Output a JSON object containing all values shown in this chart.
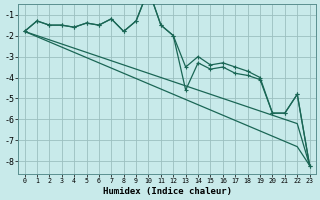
{
  "xlabel": "Humidex (Indice chaleur)",
  "background_color": "#c8eaea",
  "grid_color": "#9bbfbf",
  "line_color": "#1a6655",
  "xlim": [
    -0.5,
    23.5
  ],
  "ylim": [
    -8.6,
    -0.5
  ],
  "yticks": [
    -8,
    -7,
    -6,
    -5,
    -4,
    -3,
    -2,
    -1
  ],
  "xticks": [
    0,
    1,
    2,
    3,
    4,
    5,
    6,
    7,
    8,
    9,
    10,
    11,
    12,
    13,
    14,
    15,
    16,
    17,
    18,
    19,
    20,
    21,
    22,
    23
  ],
  "x": [
    0,
    1,
    2,
    3,
    4,
    5,
    6,
    7,
    8,
    9,
    10,
    11,
    12,
    13,
    14,
    15,
    16,
    17,
    18,
    19,
    20,
    21,
    22,
    23
  ],
  "line1": [
    -1.8,
    -1.3,
    -1.5,
    -1.5,
    -1.6,
    -1.4,
    -1.5,
    -1.2,
    -1.8,
    -1.3,
    0.2,
    -1.5,
    -2.0,
    -4.6,
    -3.3,
    -3.6,
    -3.5,
    -3.8,
    -3.9,
    -4.1,
    -5.7,
    -5.7,
    -4.8,
    -8.2
  ],
  "line2": [
    -1.8,
    -1.3,
    -1.5,
    -1.5,
    -1.6,
    -1.4,
    -1.5,
    -1.2,
    -1.8,
    -1.3,
    0.2,
    -1.5,
    -2.0,
    -3.5,
    -3.0,
    -3.4,
    -3.3,
    -3.5,
    -3.7,
    -4.0,
    -5.7,
    -5.7,
    -4.8,
    -8.2
  ],
  "line3": [
    -1.8,
    -2.05,
    -2.3,
    -2.55,
    -2.8,
    -3.05,
    -3.3,
    -3.55,
    -3.8,
    -4.05,
    -4.3,
    -4.55,
    -4.8,
    -5.05,
    -5.3,
    -5.55,
    -5.8,
    -6.05,
    -6.3,
    -6.55,
    -6.8,
    -7.05,
    -7.3,
    -8.2
  ],
  "line4": [
    -1.8,
    -2.0,
    -2.2,
    -2.4,
    -2.6,
    -2.8,
    -3.0,
    -3.2,
    -3.4,
    -3.6,
    -3.8,
    -4.0,
    -4.2,
    -4.4,
    -4.6,
    -4.8,
    -5.0,
    -5.2,
    -5.4,
    -5.6,
    -5.8,
    -6.0,
    -6.2,
    -8.2
  ]
}
